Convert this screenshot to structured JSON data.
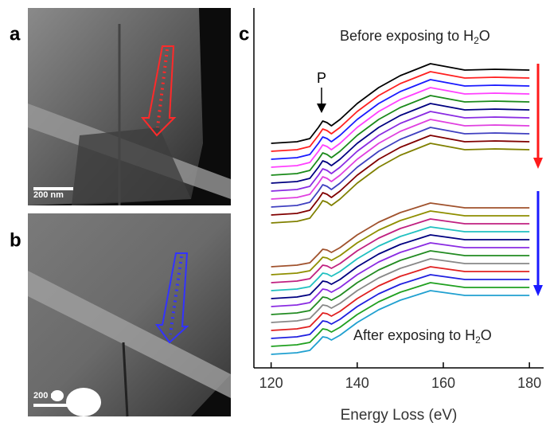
{
  "panels": {
    "a": {
      "label": "a",
      "scale_bar": "200 nm"
    },
    "b": {
      "label": "b",
      "scale_bar": "200 nm"
    }
  },
  "chart_data": {
    "type": "line",
    "panel_label": "c",
    "x_label": "Energy Loss (eV)",
    "annotations": {
      "peak": "P",
      "before": {
        "text": "Before exposing to H",
        "sub": "2",
        "tail": "O"
      },
      "after": {
        "text": "After exposing to H",
        "sub": "2",
        "tail": "O"
      }
    },
    "xlim": [
      116,
      183.3
    ],
    "xticks": [
      120,
      140,
      160,
      180
    ],
    "x": [
      120,
      126,
      129,
      131,
      132,
      133,
      134,
      136,
      140,
      145,
      150,
      157,
      165,
      172,
      180
    ],
    "series": [
      {
        "color": "#000000",
        "values": [
          280,
          282,
          286,
          300,
          308,
          306,
          302,
          310,
          330,
          350,
          365,
          380,
          372,
          373,
          372
        ]
      },
      {
        "color": "#ff2020",
        "values": [
          270,
          272,
          276,
          290,
          298,
          296,
          292,
          300,
          320,
          340,
          355,
          370,
          362,
          363,
          362
        ]
      },
      {
        "color": "#1a1aff",
        "values": [
          260,
          262,
          266,
          280,
          288,
          286,
          282,
          290,
          310,
          330,
          345,
          360,
          352,
          353,
          352
        ]
      },
      {
        "color": "#ff40ff",
        "values": [
          250,
          252,
          256,
          270,
          278,
          276,
          272,
          280,
          300,
          320,
          335,
          350,
          342,
          343,
          342
        ]
      },
      {
        "color": "#1a8a1a",
        "values": [
          240,
          242,
          246,
          260,
          268,
          266,
          262,
          270,
          290,
          310,
          325,
          340,
          332,
          333,
          332
        ]
      },
      {
        "color": "#000080",
        "values": [
          230,
          232,
          236,
          250,
          258,
          256,
          252,
          260,
          280,
          300,
          315,
          330,
          322,
          323,
          322
        ]
      },
      {
        "color": "#8a2be2",
        "values": [
          220,
          222,
          226,
          240,
          248,
          246,
          242,
          250,
          270,
          290,
          305,
          320,
          312,
          313,
          312
        ]
      },
      {
        "color": "#e040e0",
        "values": [
          210,
          212,
          216,
          230,
          238,
          236,
          232,
          240,
          260,
          280,
          295,
          310,
          302,
          303,
          302
        ]
      },
      {
        "color": "#4040c0",
        "values": [
          200,
          202,
          206,
          220,
          228,
          226,
          222,
          230,
          250,
          270,
          285,
          300,
          292,
          293,
          292
        ]
      },
      {
        "color": "#800000",
        "values": [
          190,
          192,
          196,
          210,
          218,
          216,
          212,
          220,
          240,
          260,
          275,
          290,
          282,
          283,
          282
        ]
      },
      {
        "color": "#808000",
        "values": [
          180,
          182,
          186,
          200,
          208,
          206,
          202,
          210,
          230,
          250,
          265,
          280,
          272,
          273,
          272
        ]
      },
      {
        "color": "#a0522d",
        "values": [
          125,
          127,
          130,
          141,
          147,
          146,
          143,
          149,
          165,
          181,
          193,
          205,
          199,
          199,
          199
        ]
      },
      {
        "color": "#8f8f00",
        "values": [
          115,
          117,
          120,
          131,
          137,
          136,
          133,
          139,
          155,
          171,
          183,
          195,
          189,
          189,
          189
        ]
      },
      {
        "color": "#c02080",
        "values": [
          105,
          107,
          110,
          121,
          127,
          126,
          123,
          129,
          145,
          161,
          173,
          185,
          179,
          179,
          179
        ]
      },
      {
        "color": "#20c0c0",
        "values": [
          95,
          97,
          100,
          111,
          117,
          116,
          113,
          119,
          135,
          151,
          163,
          175,
          169,
          169,
          169
        ]
      },
      {
        "color": "#000080",
        "values": [
          85,
          87,
          90,
          101,
          107,
          106,
          103,
          109,
          125,
          141,
          153,
          165,
          159,
          159,
          159
        ]
      },
      {
        "color": "#8a2be2",
        "values": [
          75,
          77,
          80,
          91,
          97,
          96,
          93,
          99,
          115,
          131,
          143,
          155,
          149,
          149,
          149
        ]
      },
      {
        "color": "#228b22",
        "values": [
          65,
          67,
          70,
          81,
          87,
          86,
          83,
          89,
          105,
          121,
          133,
          145,
          139,
          139,
          139
        ]
      },
      {
        "color": "#888888",
        "values": [
          55,
          57,
          60,
          71,
          77,
          76,
          73,
          79,
          95,
          111,
          123,
          135,
          129,
          129,
          129
        ]
      },
      {
        "color": "#e02020",
        "values": [
          45,
          47,
          50,
          61,
          67,
          66,
          63,
          69,
          85,
          101,
          113,
          125,
          119,
          119,
          119
        ]
      },
      {
        "color": "#2020e0",
        "values": [
          35,
          37,
          40,
          51,
          57,
          56,
          53,
          59,
          75,
          91,
          103,
          115,
          109,
          109,
          109
        ]
      },
      {
        "color": "#20a020",
        "values": [
          25,
          27,
          30,
          41,
          47,
          46,
          43,
          49,
          65,
          81,
          93,
          105,
          99,
          99,
          99
        ]
      },
      {
        "color": "#20a0d0",
        "values": [
          15,
          17,
          20,
          31,
          37,
          36,
          33,
          39,
          55,
          71,
          83,
          95,
          89,
          89,
          89
        ]
      }
    ]
  }
}
